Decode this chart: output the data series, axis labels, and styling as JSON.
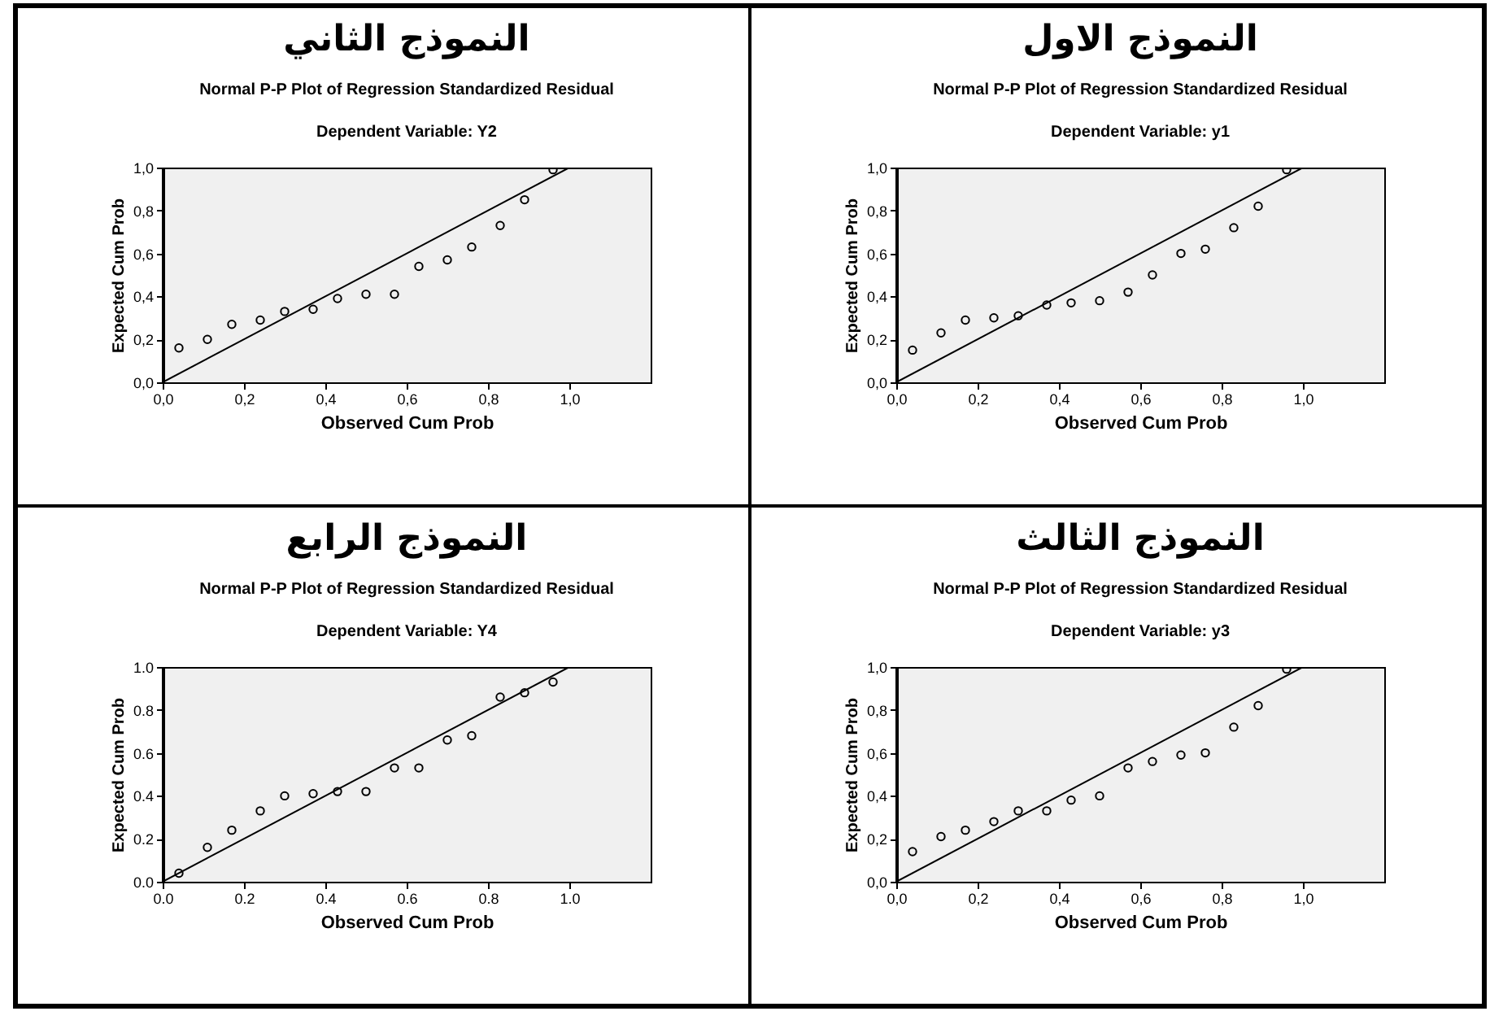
{
  "chart_data": [
    {
      "type": "scatter",
      "title": "النموذج الاول",
      "subtitle": "Normal P-P Plot of Regression Standardized Residual",
      "annotations": [
        "Dependent Variable: y1"
      ],
      "xlabel": "Observed Cum Prob",
      "ylabel": "Expected Cum Prob",
      "xlim": [
        0,
        1.2
      ],
      "ylim": [
        0,
        1
      ],
      "xticks": [
        {
          "value": 0,
          "label": "0,0"
        },
        {
          "value": 0.2,
          "label": "0,2"
        },
        {
          "value": 0.4,
          "label": "0,4"
        },
        {
          "value": 0.6,
          "label": "0,6"
        },
        {
          "value": 0.8,
          "label": "0,8"
        },
        {
          "value": 1,
          "label": "1,0"
        }
      ],
      "yticks": [
        {
          "value": 0,
          "label": "0,0"
        },
        {
          "value": 0.2,
          "label": "0,2"
        },
        {
          "value": 0.4,
          "label": "0,4"
        },
        {
          "value": 0.6,
          "label": "0,6"
        },
        {
          "value": 0.8,
          "label": "0,8"
        },
        {
          "value": 1,
          "label": "1,0"
        }
      ],
      "series": [
        {
          "type": "scatter",
          "marker": "circle",
          "color": "#000000",
          "x": [
            0.04,
            0.11,
            0.17,
            0.24,
            0.3,
            0.37,
            0.43,
            0.5,
            0.57,
            0.63,
            0.7,
            0.76,
            0.83,
            0.89,
            0.96
          ],
          "values": [
            0.15,
            0.23,
            0.29,
            0.3,
            0.31,
            0.36,
            0.37,
            0.38,
            0.42,
            0.5,
            0.6,
            0.62,
            0.72,
            0.82,
            0.99
          ]
        },
        {
          "type": "line",
          "color": "#000000",
          "x": [
            0,
            1
          ],
          "values": [
            0,
            1
          ]
        }
      ]
    },
    {
      "type": "scatter",
      "title": "النموذج الثاني",
      "subtitle": "Normal P-P Plot of Regression Standardized Residual",
      "annotations": [
        "Dependent Variable: Y2"
      ],
      "xlabel": "Observed Cum Prob",
      "ylabel": "Expected Cum Prob",
      "xlim": [
        0,
        1.2
      ],
      "ylim": [
        0,
        1
      ],
      "xticks": [
        {
          "value": 0,
          "label": "0,0"
        },
        {
          "value": 0.2,
          "label": "0,2"
        },
        {
          "value": 0.4,
          "label": "0,4"
        },
        {
          "value": 0.6,
          "label": "0,6"
        },
        {
          "value": 0.8,
          "label": "0,8"
        },
        {
          "value": 1,
          "label": "1,0"
        }
      ],
      "yticks": [
        {
          "value": 0,
          "label": "0,0"
        },
        {
          "value": 0.2,
          "label": "0,2"
        },
        {
          "value": 0.4,
          "label": "0,4"
        },
        {
          "value": 0.6,
          "label": "0,6"
        },
        {
          "value": 0.8,
          "label": "0,8"
        },
        {
          "value": 1,
          "label": "1,0"
        }
      ],
      "series": [
        {
          "type": "scatter",
          "marker": "circle",
          "color": "#000000",
          "x": [
            0.04,
            0.11,
            0.17,
            0.24,
            0.3,
            0.37,
            0.43,
            0.5,
            0.57,
            0.63,
            0.7,
            0.76,
            0.83,
            0.89,
            0.96
          ],
          "values": [
            0.16,
            0.2,
            0.27,
            0.29,
            0.33,
            0.34,
            0.39,
            0.41,
            0.41,
            0.54,
            0.57,
            0.63,
            0.73,
            0.85,
            0.99
          ]
        },
        {
          "type": "line",
          "color": "#000000",
          "x": [
            0,
            1
          ],
          "values": [
            0,
            1
          ]
        }
      ]
    },
    {
      "type": "scatter",
      "title": "النموذج الثالث",
      "subtitle": "Normal P-P Plot of Regression Standardized Residual",
      "annotations": [
        "Dependent Variable: y3"
      ],
      "xlabel": "Observed Cum Prob",
      "ylabel": "Expected Cum Prob",
      "xlim": [
        0,
        1.2
      ],
      "ylim": [
        0,
        1
      ],
      "xticks": [
        {
          "value": 0,
          "label": "0,0"
        },
        {
          "value": 0.2,
          "label": "0,2"
        },
        {
          "value": 0.4,
          "label": "0,4"
        },
        {
          "value": 0.6,
          "label": "0,6"
        },
        {
          "value": 0.8,
          "label": "0,8"
        },
        {
          "value": 1,
          "label": "1,0"
        }
      ],
      "yticks": [
        {
          "value": 0,
          "label": "0,0"
        },
        {
          "value": 0.2,
          "label": "0,2"
        },
        {
          "value": 0.4,
          "label": "0,4"
        },
        {
          "value": 0.6,
          "label": "0,6"
        },
        {
          "value": 0.8,
          "label": "0,8"
        },
        {
          "value": 1,
          "label": "1,0"
        }
      ],
      "series": [
        {
          "type": "scatter",
          "marker": "circle",
          "color": "#000000",
          "x": [
            0.04,
            0.11,
            0.17,
            0.24,
            0.3,
            0.37,
            0.43,
            0.5,
            0.57,
            0.63,
            0.7,
            0.76,
            0.83,
            0.89,
            0.96
          ],
          "values": [
            0.14,
            0.21,
            0.24,
            0.28,
            0.33,
            0.33,
            0.38,
            0.4,
            0.53,
            0.56,
            0.59,
            0.6,
            0.72,
            0.82,
            0.99
          ]
        },
        {
          "type": "line",
          "color": "#000000",
          "x": [
            0,
            1
          ],
          "values": [
            0,
            1
          ]
        }
      ]
    },
    {
      "type": "scatter",
      "title": "النموذج الرابع",
      "subtitle": "Normal P-P Plot of Regression Standardized Residual",
      "annotations": [
        "Dependent Variable: Y4"
      ],
      "xlabel": "Observed Cum Prob",
      "ylabel": "Expected Cum Prob",
      "xlim": [
        0,
        1.2
      ],
      "ylim": [
        0,
        1
      ],
      "xticks": [
        {
          "value": 0,
          "label": "0.0"
        },
        {
          "value": 0.2,
          "label": "0.2"
        },
        {
          "value": 0.4,
          "label": "0.4"
        },
        {
          "value": 0.6,
          "label": "0.6"
        },
        {
          "value": 0.8,
          "label": "0.8"
        },
        {
          "value": 1,
          "label": "1.0"
        }
      ],
      "yticks": [
        {
          "value": 0,
          "label": "0.0"
        },
        {
          "value": 0.2,
          "label": "0.2"
        },
        {
          "value": 0.4,
          "label": "0.4"
        },
        {
          "value": 0.6,
          "label": "0.6"
        },
        {
          "value": 0.8,
          "label": "0.8"
        },
        {
          "value": 1,
          "label": "1.0"
        }
      ],
      "series": [
        {
          "type": "scatter",
          "marker": "circle",
          "color": "#000000",
          "x": [
            0.04,
            0.11,
            0.17,
            0.24,
            0.3,
            0.37,
            0.43,
            0.5,
            0.57,
            0.63,
            0.7,
            0.76,
            0.83,
            0.89,
            0.96
          ],
          "values": [
            0.04,
            0.16,
            0.24,
            0.33,
            0.4,
            0.41,
            0.42,
            0.42,
            0.53,
            0.53,
            0.66,
            0.68,
            0.86,
            0.88,
            0.93
          ]
        },
        {
          "type": "line",
          "color": "#000000",
          "x": [
            0,
            1
          ],
          "values": [
            0,
            1
          ]
        }
      ]
    }
  ]
}
